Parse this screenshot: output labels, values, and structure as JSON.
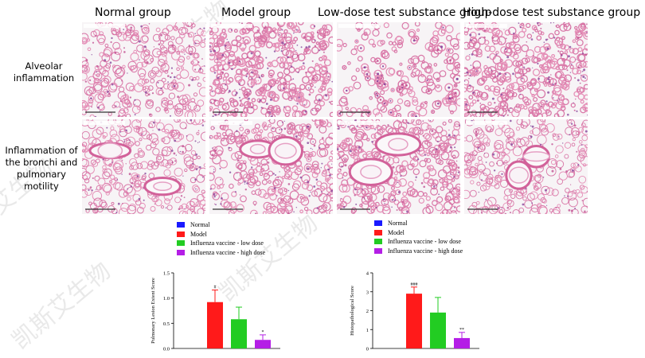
{
  "column_headers": [
    "Normal group",
    "Model group",
    "Low-dose test substance group",
    "High-dose test substance group"
  ],
  "row_labels": [
    "Alveolar\ninflammation",
    "Inflammation of\nthe bronchi and\npulmonary\nmotility"
  ],
  "legend_items": [
    {
      "label": "Normal",
      "color": "#1a1aff"
    },
    {
      "label": "Model",
      "color": "#ff1a1a"
    },
    {
      "label": "Influenza vaccine - low dose",
      "color": "#22cc22"
    },
    {
      "label": "Influenza vaccine - high dose",
      "color": "#b41ee6"
    }
  ],
  "watermark": [
    "凯斯艾生物",
    "凯斯艾生物",
    "艾生物",
    "凯斯艾生物"
  ],
  "chart_data": [
    {
      "type": "bar",
      "ylabel": "Pulmonary Lesion Extent Score",
      "ylim": [
        0,
        1.5
      ],
      "yticks": [
        "0.0",
        "0.5",
        "1.0",
        "1.5"
      ],
      "series": [
        {
          "name": "Normal",
          "value": 0,
          "error": 0,
          "annotation": "",
          "color": "#1a1aff"
        },
        {
          "name": "Model",
          "value": 0.92,
          "error": 0.24,
          "annotation": "#",
          "color": "#ff1a1a"
        },
        {
          "name": "Influenza vaccine - low dose",
          "value": 0.58,
          "error": 0.24,
          "annotation": "",
          "color": "#22cc22"
        },
        {
          "name": "Influenza vaccine - high dose",
          "value": 0.17,
          "error": 0.1,
          "annotation": "*",
          "color": "#b41ee6"
        }
      ]
    },
    {
      "type": "bar",
      "ylabel": "Histopathological Score",
      "ylim": [
        0,
        4
      ],
      "yticks": [
        "0",
        "1",
        "2",
        "3",
        "4"
      ],
      "series": [
        {
          "name": "Normal",
          "value": 0,
          "error": 0,
          "annotation": "",
          "color": "#1a1aff"
        },
        {
          "name": "Model",
          "value": 2.9,
          "error": 0.35,
          "annotation": "###",
          "color": "#ff1a1a"
        },
        {
          "name": "Influenza vaccine - low dose",
          "value": 1.9,
          "error": 0.8,
          "annotation": "",
          "color": "#22cc22"
        },
        {
          "name": "Influenza vaccine - high dose",
          "value": 0.55,
          "error": 0.3,
          "annotation": "**",
          "color": "#b41ee6"
        }
      ]
    }
  ]
}
